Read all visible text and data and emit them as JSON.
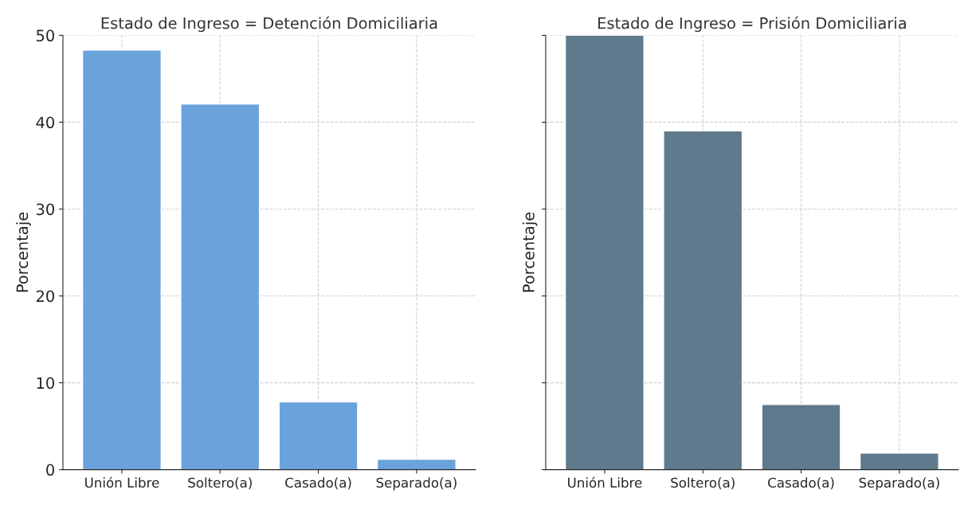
{
  "chart_data": [
    {
      "type": "bar",
      "title": "Estado de Ingreso = Detención Domiciliaria",
      "ylabel": "Porcentaje",
      "categories": [
        "Unión Libre",
        "Soltero(a)",
        "Casado(a)",
        "Separado(a)"
      ],
      "values": [
        48.3,
        42.1,
        7.8,
        1.2
      ],
      "color": "#6aa2db",
      "ylim": [
        0,
        50
      ],
      "yticks": [
        0,
        10,
        20,
        30,
        40,
        50
      ],
      "grid": true,
      "line_style": "dashed"
    },
    {
      "type": "bar",
      "title": "Estado de Ingreso = Prisión Domiciliaria",
      "ylabel": "Porcentaje",
      "categories": [
        "Unión Libre",
        "Soltero(a)",
        "Casado(a)",
        "Separado(a)"
      ],
      "values": [
        50,
        39.0,
        7.5,
        1.9
      ],
      "color": "#5f7a8c",
      "ylim": [
        0,
        50
      ],
      "yticks": [
        0,
        10,
        20,
        30,
        40,
        50
      ],
      "grid": true,
      "line_style": "dashed",
      "tick_labels": "x"
    }
  ]
}
